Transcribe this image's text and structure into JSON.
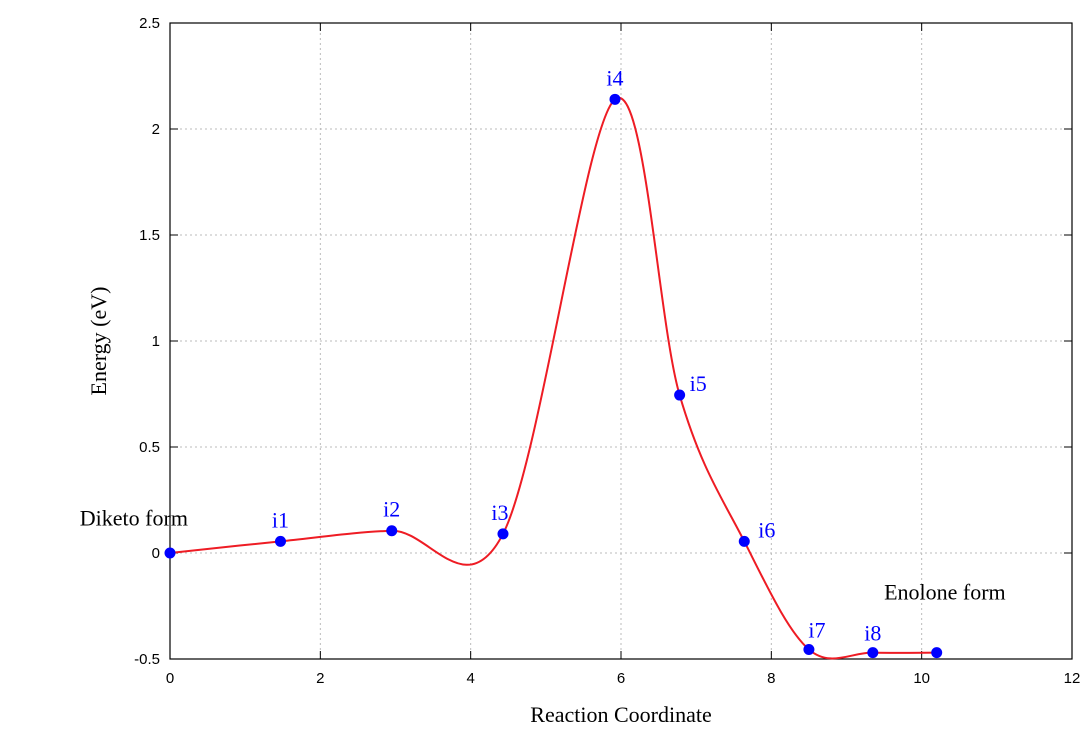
{
  "chart_data": {
    "type": "line",
    "xlabel": "Reaction Coordinate",
    "ylabel": "Energy (eV)",
    "xlim": [
      0,
      12
    ],
    "ylim": [
      -0.5,
      2.5
    ],
    "xticks": [
      0,
      2,
      4,
      6,
      8,
      10,
      12
    ],
    "yticks": [
      -0.5,
      0,
      0.5,
      1,
      1.5,
      2,
      2.5
    ],
    "ytick_labels": [
      "-0.5",
      "0",
      "0.5",
      "1",
      "1.5",
      "2",
      "2.5"
    ],
    "grid": true,
    "colors": {
      "curve": "#ee1c24",
      "points": "#0000ff",
      "point_labels": "#0000ff",
      "grid": "#bbbbbb"
    },
    "points": [
      {
        "x": 0.0,
        "y": 0.0,
        "label": ""
      },
      {
        "x": 1.47,
        "y": 0.055,
        "label": "i1"
      },
      {
        "x": 2.95,
        "y": 0.105,
        "label": "i2"
      },
      {
        "x": 4.43,
        "y": 0.09,
        "label": "i3"
      },
      {
        "x": 5.92,
        "y": 2.14,
        "label": "i4"
      },
      {
        "x": 6.78,
        "y": 0.745,
        "label": "i5"
      },
      {
        "x": 7.64,
        "y": 0.055,
        "label": "i6"
      },
      {
        "x": 8.5,
        "y": -0.455,
        "label": "i7"
      },
      {
        "x": 9.35,
        "y": -0.47,
        "label": "i8"
      },
      {
        "x": 10.2,
        "y": -0.47,
        "label": ""
      }
    ],
    "annotations": [
      {
        "text": "Diketo form",
        "x": -1.2,
        "y": 0.13
      },
      {
        "text": "Enolone form",
        "x": 9.5,
        "y": -0.22
      }
    ]
  }
}
